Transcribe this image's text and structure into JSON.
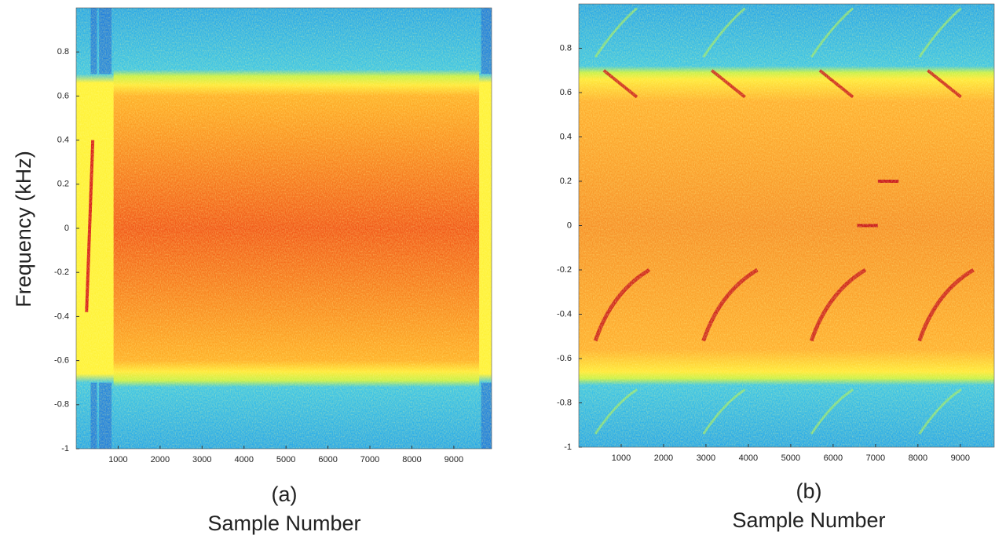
{
  "chart_data": [
    {
      "type": "spectrogram",
      "caption": "(a)",
      "xlabel": "Sample Number",
      "ylabel": "Frequency (kHz)",
      "xlim": [
        0,
        9900
      ],
      "ylim": [
        -1,
        1
      ],
      "xticks": [
        1000,
        2000,
        3000,
        4000,
        5000,
        6000,
        7000,
        8000,
        9000
      ],
      "yticks": [
        0.8,
        0.6,
        0.4,
        0.2,
        0,
        -0.2,
        -0.4,
        -0.6,
        -0.8,
        -1
      ]
    },
    {
      "type": "spectrogram",
      "caption": "(b)",
      "xlabel": "Sample Number",
      "xlim": [
        0,
        9800
      ],
      "ylim": [
        -1,
        1
      ],
      "xticks": [
        1000,
        2000,
        3000,
        4000,
        5000,
        6000,
        7000,
        8000,
        9000
      ],
      "yticks": [
        0.8,
        0.6,
        0.4,
        0.2,
        0,
        -0.2,
        -0.4,
        -0.6,
        -0.8,
        -1
      ]
    }
  ]
}
